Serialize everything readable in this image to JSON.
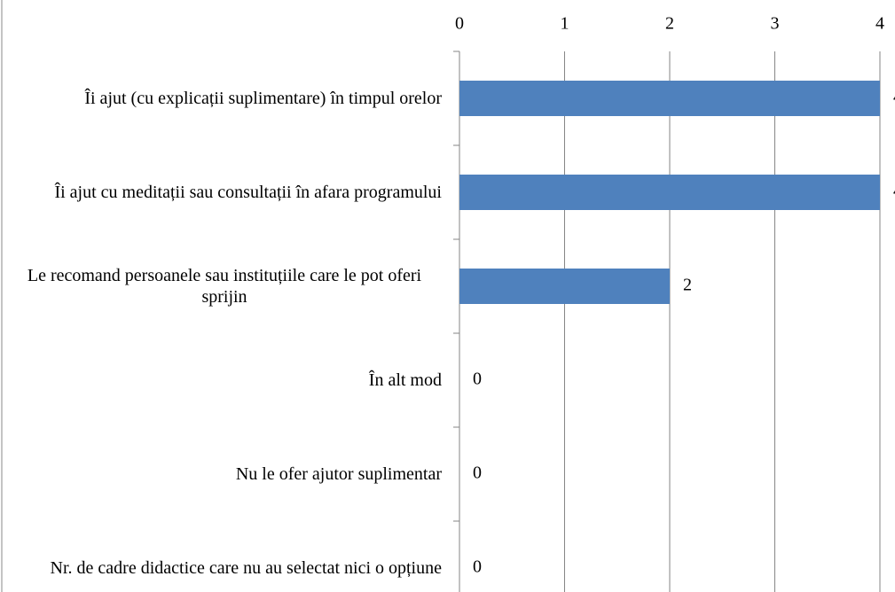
{
  "chart_data": {
    "type": "bar",
    "orientation": "horizontal",
    "categories": [
      "Îi ajut (cu explicații suplimentare) în timpul orelor",
      "Îi ajut cu meditații sau consultații în afara programului",
      "Le recomand persoanele sau instituțiile care le pot oferi sprijin",
      "În alt mod",
      "Nu le ofer ajutor suplimentar",
      "Nr. de cadre didactice care nu au selectat nici o opțiune"
    ],
    "values": [
      4,
      4,
      2,
      0,
      0,
      0
    ],
    "color": "#4f81bd",
    "xlim": [
      0,
      4
    ],
    "xticks": [
      0,
      1,
      2,
      3,
      4
    ],
    "grid": true
  }
}
